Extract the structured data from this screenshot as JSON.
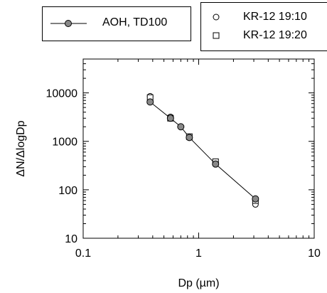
{
  "chart_data": {
    "type": "scatter",
    "xscale": "log",
    "yscale": "log",
    "xlim": [
      0.1,
      10
    ],
    "ylim": [
      10,
      50000
    ],
    "xticks": [
      0.1,
      1,
      10
    ],
    "xtick_labels": [
      "0.1",
      "1",
      "10"
    ],
    "yticks": [
      10,
      100,
      1000,
      10000
    ],
    "ytick_labels": [
      "10",
      "100",
      "1000",
      "10000"
    ],
    "xlabel": "Dp (µm)",
    "ylabel": "ΔN/ΔlogDp",
    "legend_placement": "above plot",
    "series": [
      {
        "name": "AOH, TD100",
        "marker": "filled-circle",
        "line": true,
        "color": "#888888",
        "x": [
          0.38,
          0.57,
          0.7,
          0.83,
          1.4,
          3.1
        ],
        "y": [
          6500,
          3000,
          2000,
          1200,
          340,
          65
        ]
      },
      {
        "name": "KR-12 19:10",
        "marker": "open-circle",
        "line": false,
        "color": "#000000",
        "x": [
          0.38,
          0.57,
          0.83,
          1.4,
          3.1
        ],
        "y": [
          8500,
          3200,
          1200,
          370,
          50
        ]
      },
      {
        "name": "KR-12 19:20",
        "marker": "open-square",
        "line": false,
        "color": "#000000",
        "x": [
          0.38,
          0.57,
          0.83,
          1.4,
          3.1
        ],
        "y": [
          8000,
          3000,
          1250,
          380,
          60
        ]
      }
    ]
  }
}
